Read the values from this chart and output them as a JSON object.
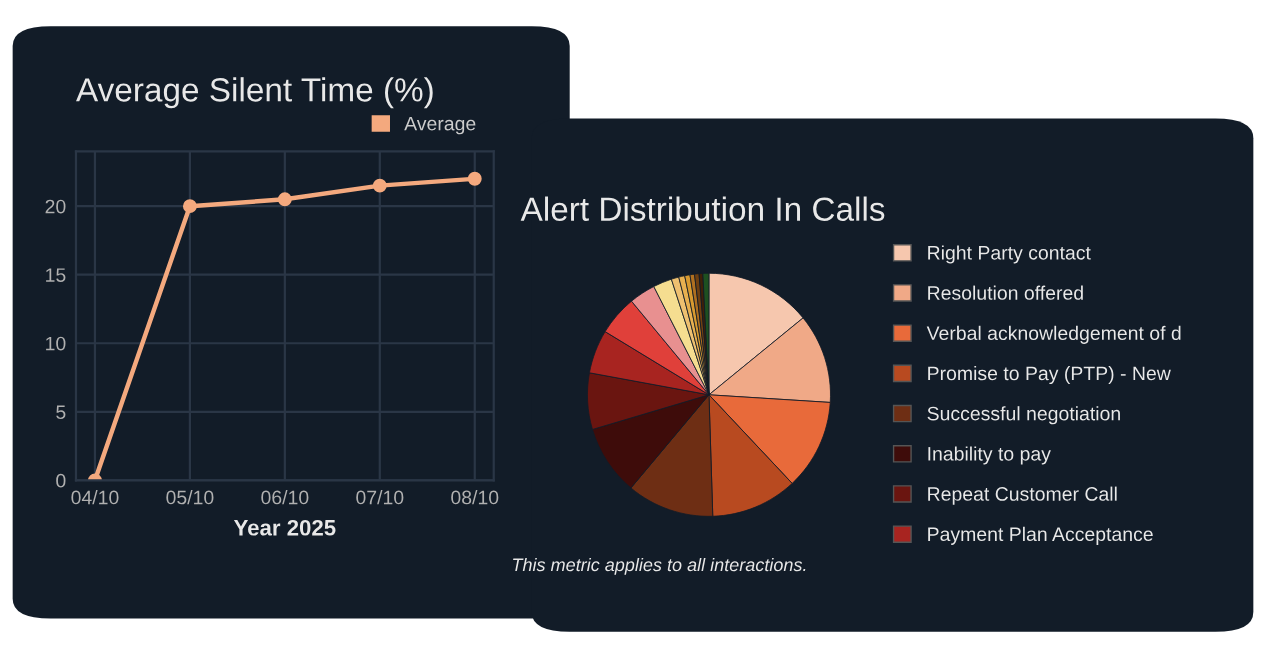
{
  "chart_data": [
    {
      "type": "line",
      "title": "Average Silent Time (%)",
      "xlabel": "Year 2025",
      "categories": [
        "04/10",
        "05/10",
        "06/10",
        "07/10",
        "08/10"
      ],
      "series": [
        {
          "name": "Average",
          "color": "#f4a97e",
          "values": [
            0,
            20,
            20.5,
            21.5,
            22
          ]
        }
      ],
      "ylim": [
        0,
        24
      ],
      "yticks": [
        0,
        5,
        10,
        15,
        20
      ],
      "grid": true,
      "legend": "top right",
      "marker": "circle",
      "line_style": "solid"
    },
    {
      "type": "pie",
      "title": "Alert Distribution In Calls",
      "categories": [
        "Right Party contact",
        "Resolution offered",
        "Verbal acknowledgement of d",
        "Promise to Pay (PTP) - New",
        "Successful negotiation",
        "Inability to pay",
        "Repeat Customer Call",
        "Payment Plan Acceptance",
        null,
        null,
        null,
        null,
        null,
        null,
        null,
        null,
        null,
        null
      ],
      "values": [
        14.1,
        11.9,
        12.0,
        11.5,
        11.6,
        9.3,
        7.5,
        5.8,
        5.3,
        3.5,
        2.5,
        1.0,
        0.8,
        0.7,
        0.6,
        0.6,
        0.5,
        0.8
      ],
      "colors": [
        "#f6c7ae",
        "#f0a987",
        "#e86a3a",
        "#b84a20",
        "#6e2e14",
        "#3e0c0a",
        "#6a1510",
        "#a82420",
        "#e0403a",
        "#e89090",
        "#f5dd90",
        "#eec070",
        "#e8b050",
        "#d89a30",
        "#b07020",
        "#704010",
        "#402008",
        "#1e5020"
      ],
      "legend": "right",
      "annotations": [
        "This metric applies to all interactions."
      ]
    }
  ]
}
